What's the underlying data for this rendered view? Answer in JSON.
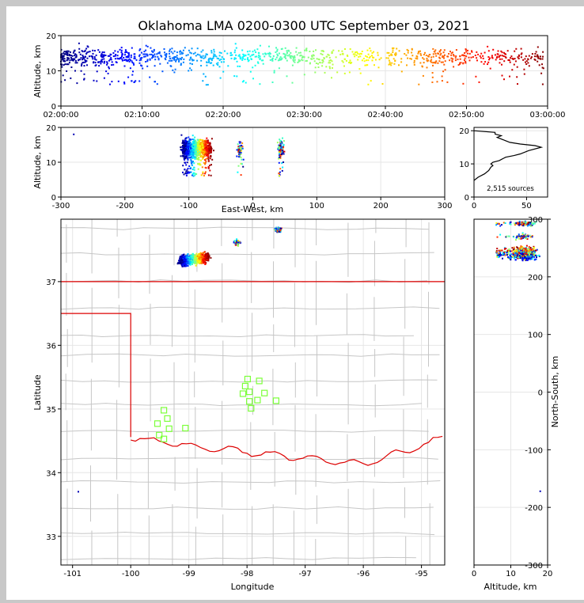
{
  "chart_data": [
    {
      "panel": "time-altitude",
      "type": "scatter",
      "title": "Oklahoma LMA 0200-0300 UTC September 03, 2021",
      "xlabel": "",
      "ylabel": "Altitude, km",
      "x_ticks": [
        "02:00:00",
        "02:10:00",
        "02:20:00",
        "02:30:00",
        "02:40:00",
        "02:50:00",
        "03:00:00"
      ],
      "xlim_minutes": [
        0,
        60
      ],
      "y_ticks": [
        0,
        10,
        20
      ],
      "ylim": [
        0,
        20
      ],
      "grid": true,
      "colormap": "jet by time"
    },
    {
      "panel": "east-west-altitude",
      "type": "scatter",
      "xlabel": "East-West, km",
      "ylabel": "Altitude, km",
      "x_ticks": [
        -300,
        -200,
        -100,
        0,
        100,
        200,
        300
      ],
      "xlim": [
        -300,
        300
      ],
      "y_ticks": [
        0,
        10,
        20
      ],
      "ylim": [
        0,
        20
      ],
      "grid": true
    },
    {
      "panel": "altitude-histogram",
      "type": "line",
      "annotation": "2,515 sources",
      "x_ticks": [
        0,
        50
      ],
      "xlim": [
        0,
        70
      ],
      "y_ticks": [
        0,
        10,
        20
      ],
      "ylim": [
        0,
        21
      ],
      "profile": [
        [
          0,
          5
        ],
        [
          4,
          6
        ],
        [
          10,
          7
        ],
        [
          14,
          8
        ],
        [
          16,
          9
        ],
        [
          18,
          9.5
        ],
        [
          16,
          10
        ],
        [
          18,
          10.5
        ],
        [
          24,
          11
        ],
        [
          30,
          12
        ],
        [
          38,
          12.5
        ],
        [
          44,
          13
        ],
        [
          52,
          14
        ],
        [
          64,
          15
        ],
        [
          58,
          15.5
        ],
        [
          44,
          16
        ],
        [
          34,
          16.5
        ],
        [
          30,
          17
        ],
        [
          26,
          17.5
        ],
        [
          22,
          18
        ],
        [
          26,
          18.5
        ],
        [
          20,
          19
        ],
        [
          20,
          19.5
        ],
        [
          0,
          20
        ]
      ],
      "grid": true
    },
    {
      "panel": "plan-view",
      "type": "scatter",
      "xlabel": "Longitude",
      "ylabel": "Latitude",
      "x_ticks": [
        -101,
        -100,
        -99,
        -98,
        -97,
        -96,
        -95
      ],
      "xlim": [
        -101.2,
        -94.6
      ],
      "y_ticks": [
        33,
        34,
        35,
        36,
        37
      ],
      "ylim": [
        32.55,
        37.98
      ],
      "stations": [
        [
          -99.54,
          34.77
        ],
        [
          -99.43,
          34.98
        ],
        [
          -99.37,
          34.85
        ],
        [
          -99.34,
          34.69
        ],
        [
          -99.51,
          34.59
        ],
        [
          -99.43,
          34.53
        ],
        [
          -99.06,
          34.7
        ],
        [
          -97.99,
          35.47
        ],
        [
          -98.03,
          35.36
        ],
        [
          -98.07,
          35.24
        ],
        [
          -97.96,
          35.27
        ],
        [
          -97.79,
          35.44
        ],
        [
          -97.7,
          35.25
        ],
        [
          -97.82,
          35.14
        ],
        [
          -97.96,
          35.12
        ],
        [
          -97.93,
          35.01
        ],
        [
          -97.5,
          35.13
        ]
      ],
      "grid": true
    },
    {
      "panel": "altitude-north-south",
      "type": "scatter",
      "xlabel": "Altitude, km",
      "ylabel": "North-South, km",
      "x_ticks": [
        0,
        10,
        20
      ],
      "xlim": [
        0,
        20
      ],
      "y_ticks": [
        -300,
        -200,
        -100,
        0,
        100,
        200,
        300
      ],
      "ylim": [
        -300,
        300
      ],
      "grid": true
    }
  ]
}
